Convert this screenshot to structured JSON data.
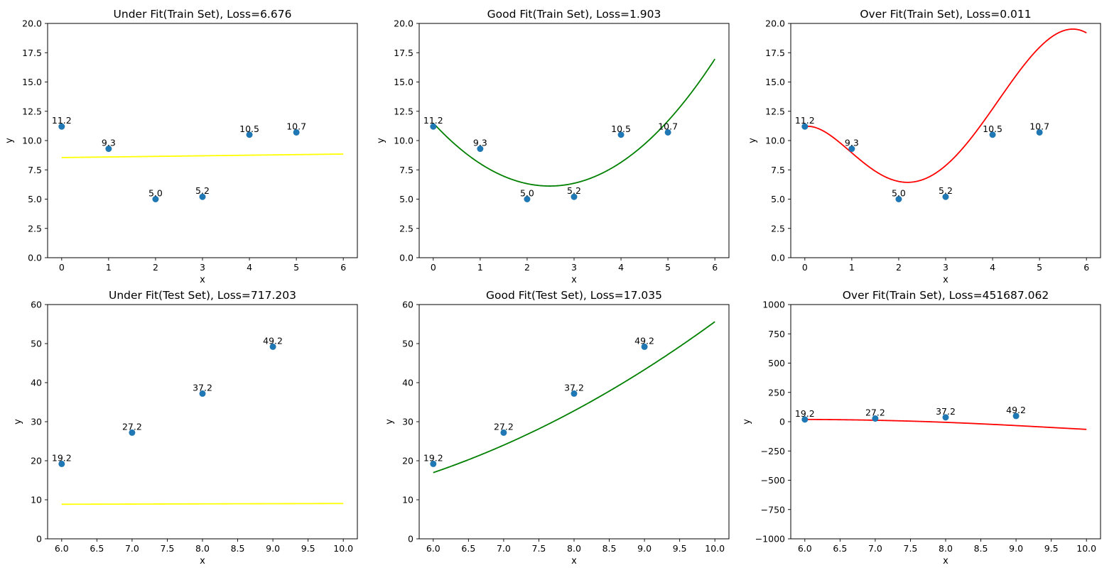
{
  "figure": {
    "point_color": "#1f77b4"
  },
  "chart_data": [
    {
      "type": "scatter",
      "title": "Under Fit(Train Set), Loss=6.676",
      "xlabel": "x",
      "ylabel": "y",
      "xlim": [
        -0.3,
        6.3
      ],
      "ylim": [
        0,
        20
      ],
      "xticks": [
        0,
        1,
        2,
        3,
        4,
        5,
        6
      ],
      "yticks": [
        0,
        2.5,
        5,
        7.5,
        10,
        12.5,
        15,
        17.5,
        20
      ],
      "tick_decimals": {
        "x": 0,
        "y": 1
      },
      "points": {
        "x": [
          0,
          1,
          2,
          3,
          4,
          5
        ],
        "y": [
          11.2,
          9.3,
          5.0,
          5.2,
          10.5,
          10.7
        ],
        "labels": [
          "11.2",
          "9.3",
          "5.0",
          "5.2",
          "10.5",
          "10.7"
        ]
      },
      "fit": {
        "color": "#ffff00",
        "coefficients": [
          8.55,
          0.05
        ],
        "x_range": [
          0,
          6
        ]
      },
      "grid": false
    },
    {
      "type": "scatter",
      "title": "Good Fit(Train Set), Loss=1.903",
      "xlabel": "x",
      "ylabel": "y",
      "xlim": [
        -0.3,
        6.3
      ],
      "ylim": [
        0,
        20
      ],
      "xticks": [
        0,
        1,
        2,
        3,
        4,
        5,
        6
      ],
      "yticks": [
        0,
        2.5,
        5,
        7.5,
        10,
        12.5,
        15,
        17.5,
        20
      ],
      "tick_decimals": {
        "x": 0,
        "y": 1
      },
      "points": {
        "x": [
          0,
          1,
          2,
          3,
          4,
          5
        ],
        "y": [
          11.2,
          9.3,
          5.0,
          5.2,
          10.5,
          10.7
        ],
        "labels": [
          "11.2",
          "9.3",
          "5.0",
          "5.2",
          "10.5",
          "10.7"
        ]
      },
      "fit": {
        "color": "#008000",
        "coefficients": [
          11.5,
          -4.34,
          0.875
        ],
        "x_range": [
          0,
          6
        ]
      },
      "grid": false
    },
    {
      "type": "scatter",
      "title": "Over Fit(Train Set), Loss=0.011",
      "xlabel": "x",
      "ylabel": "y",
      "xlim": [
        -0.3,
        6.3
      ],
      "ylim": [
        0,
        20
      ],
      "xticks": [
        0,
        1,
        2,
        3,
        4,
        5,
        6
      ],
      "yticks": [
        0,
        2.5,
        5,
        7.5,
        10,
        12.5,
        15,
        17.5,
        20
      ],
      "tick_decimals": {
        "x": 0,
        "y": 1
      },
      "points": {
        "x": [
          0,
          1,
          2,
          3,
          4,
          5
        ],
        "y": [
          11.2,
          9.3,
          5.0,
          5.2,
          10.5,
          10.7
        ],
        "labels": [
          "11.2",
          "9.3",
          "5.0",
          "5.2",
          "10.5",
          "10.7"
        ]
      },
      "fit": {
        "color": "#ff0000",
        "coefficients": [
          11.2,
          0.5633,
          -4.6958,
          2.1792,
          -0.3042,
          0.0125
        ],
        "x_range": [
          0,
          6
        ]
      },
      "grid": false
    },
    {
      "type": "scatter",
      "title": "Under Fit(Test Set), Loss=717.203",
      "xlabel": "x",
      "ylabel": "y",
      "xlim": [
        5.8,
        10.2
      ],
      "ylim": [
        0,
        60
      ],
      "xticks": [
        6.0,
        6.5,
        7.0,
        7.5,
        8.0,
        8.5,
        9.0,
        9.5,
        10.0
      ],
      "yticks": [
        0,
        10,
        20,
        30,
        40,
        50,
        60
      ],
      "tick_decimals": {
        "x": 1,
        "y": 0
      },
      "points": {
        "x": [
          6,
          7,
          8,
          9
        ],
        "y": [
          19.2,
          27.2,
          37.2,
          49.2
        ],
        "labels": [
          "19.2",
          "27.2",
          "37.2",
          "49.2"
        ]
      },
      "fit": {
        "color": "#ffff00",
        "coefficients": [
          8.55,
          0.05
        ],
        "x_range": [
          6,
          10
        ]
      },
      "grid": false
    },
    {
      "type": "scatter",
      "title": "Good Fit(Test Set), Loss=17.035",
      "xlabel": "x",
      "ylabel": "y",
      "xlim": [
        5.8,
        10.2
      ],
      "ylim": [
        0,
        60
      ],
      "xticks": [
        6.0,
        6.5,
        7.0,
        7.5,
        8.0,
        8.5,
        9.0,
        9.5,
        10.0
      ],
      "yticks": [
        0,
        10,
        20,
        30,
        40,
        50,
        60
      ],
      "tick_decimals": {
        "x": 1,
        "y": 0
      },
      "points": {
        "x": [
          6,
          7,
          8,
          9
        ],
        "y": [
          19.2,
          27.2,
          37.2,
          49.2
        ],
        "labels": [
          "19.2",
          "27.2",
          "37.2",
          "49.2"
        ]
      },
      "fit": {
        "color": "#008000",
        "coefficients": [
          11.5,
          -4.34,
          0.875
        ],
        "x_range": [
          6,
          10
        ]
      },
      "grid": false
    },
    {
      "type": "scatter",
      "title": "Over Fit(Train Set), Loss=451687.062",
      "xlabel": "x",
      "ylabel": "y",
      "xlim": [
        5.8,
        10.2
      ],
      "ylim": [
        -1000,
        1000
      ],
      "xticks": [
        6.0,
        6.5,
        7.0,
        7.5,
        8.0,
        8.5,
        9.0,
        9.5,
        10.0
      ],
      "yticks": [
        -1000,
        -750,
        -500,
        -250,
        0,
        250,
        500,
        750,
        1000
      ],
      "tick_decimals": {
        "x": 1,
        "y": 0
      },
      "points": {
        "x": [
          6,
          7,
          8,
          9
        ],
        "y": [
          19.2,
          27.2,
          37.2,
          49.2
        ],
        "labels": [
          "19.2",
          "27.2",
          "37.2",
          "49.2"
        ]
      },
      "fit": {
        "color": "#ff0000",
        "coefficients": [
          11.2,
          0.5633,
          -4.6958,
          2.1792,
          -0.3042,
          0.0125
        ],
        "x_range": [
          6,
          10
        ]
      },
      "grid": false
    }
  ]
}
